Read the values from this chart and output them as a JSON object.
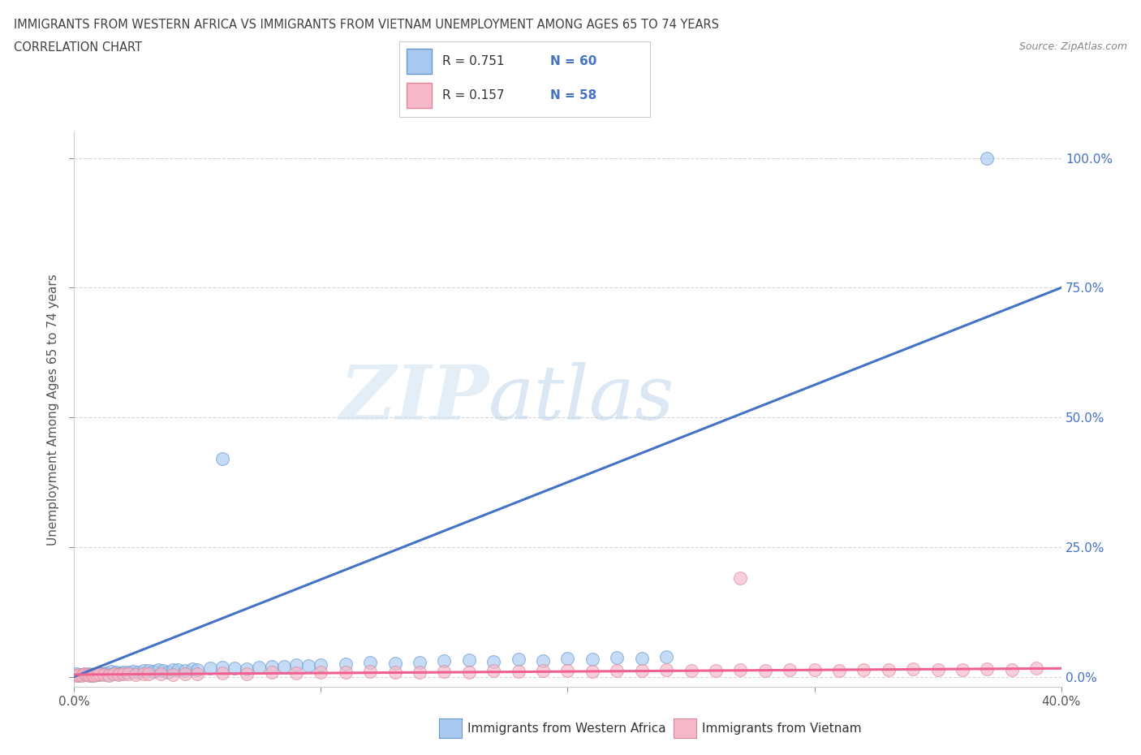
{
  "title_line1": "IMMIGRANTS FROM WESTERN AFRICA VS IMMIGRANTS FROM VIETNAM UNEMPLOYMENT AMONG AGES 65 TO 74 YEARS",
  "title_line2": "CORRELATION CHART",
  "source": "Source: ZipAtlas.com",
  "ylabel": "Unemployment Among Ages 65 to 74 years",
  "xlim": [
    0.0,
    0.4
  ],
  "ylim": [
    -0.02,
    1.05
  ],
  "xticks": [
    0.0,
    0.1,
    0.2,
    0.3,
    0.4
  ],
  "xtick_labels": [
    "0.0%",
    "",
    "",
    "",
    "40.0%"
  ],
  "ytick_labels": [
    "0.0%",
    "25.0%",
    "50.0%",
    "75.0%",
    "100.0%"
  ],
  "yticks": [
    0.0,
    0.25,
    0.5,
    0.75,
    1.0
  ],
  "watermark_zip": "ZIP",
  "watermark_atlas": "atlas",
  "legend_r1": "R = 0.751",
  "legend_n1": "N = 60",
  "legend_r2": "R = 0.157",
  "legend_n2": "N = 58",
  "color_wa_fill": "#a8c8f0",
  "color_wa_edge": "#6699cc",
  "color_vn_fill": "#f5b8c8",
  "color_vn_edge": "#dd8899",
  "trendline_color_wa": "#4472c4",
  "trendline_color_vn": "#f06090",
  "background_color": "#ffffff",
  "grid_color": "#cccccc",
  "title_color": "#404040",
  "wa_x": [
    0.001,
    0.002,
    0.003,
    0.004,
    0.005,
    0.006,
    0.007,
    0.008,
    0.009,
    0.01,
    0.011,
    0.012,
    0.013,
    0.014,
    0.015,
    0.016,
    0.017,
    0.018,
    0.019,
    0.02,
    0.022,
    0.024,
    0.026,
    0.028,
    0.03,
    0.032,
    0.034,
    0.036,
    0.038,
    0.04,
    0.042,
    0.045,
    0.048,
    0.05,
    0.055,
    0.06,
    0.065,
    0.07,
    0.075,
    0.08,
    0.085,
    0.09,
    0.095,
    0.1,
    0.11,
    0.12,
    0.13,
    0.14,
    0.15,
    0.16,
    0.17,
    0.18,
    0.19,
    0.2,
    0.21,
    0.22,
    0.23,
    0.24,
    0.06,
    0.37
  ],
  "wa_y": [
    0.005,
    0.003,
    0.004,
    0.006,
    0.004,
    0.005,
    0.003,
    0.006,
    0.005,
    0.004,
    0.006,
    0.005,
    0.007,
    0.004,
    0.01,
    0.006,
    0.008,
    0.005,
    0.007,
    0.009,
    0.008,
    0.01,
    0.009,
    0.011,
    0.012,
    0.01,
    0.013,
    0.011,
    0.009,
    0.014,
    0.013,
    0.012,
    0.015,
    0.014,
    0.016,
    0.018,
    0.017,
    0.015,
    0.018,
    0.02,
    0.019,
    0.022,
    0.021,
    0.023,
    0.025,
    0.027,
    0.026,
    0.028,
    0.03,
    0.032,
    0.029,
    0.033,
    0.031,
    0.035,
    0.033,
    0.037,
    0.036,
    0.038,
    0.42,
    1.0
  ],
  "vn_x": [
    0.001,
    0.002,
    0.003,
    0.004,
    0.005,
    0.006,
    0.007,
    0.008,
    0.009,
    0.01,
    0.012,
    0.014,
    0.016,
    0.018,
    0.02,
    0.022,
    0.025,
    0.028,
    0.03,
    0.035,
    0.04,
    0.045,
    0.05,
    0.06,
    0.07,
    0.08,
    0.09,
    0.1,
    0.11,
    0.12,
    0.13,
    0.14,
    0.15,
    0.16,
    0.17,
    0.18,
    0.19,
    0.2,
    0.21,
    0.22,
    0.23,
    0.24,
    0.25,
    0.26,
    0.27,
    0.28,
    0.29,
    0.3,
    0.31,
    0.32,
    0.33,
    0.34,
    0.35,
    0.36,
    0.37,
    0.38,
    0.39,
    0.27
  ],
  "vn_y": [
    0.003,
    0.004,
    0.003,
    0.005,
    0.004,
    0.003,
    0.004,
    0.003,
    0.004,
    0.005,
    0.004,
    0.003,
    0.005,
    0.004,
    0.005,
    0.006,
    0.004,
    0.005,
    0.006,
    0.005,
    0.004,
    0.006,
    0.005,
    0.007,
    0.006,
    0.008,
    0.007,
    0.009,
    0.008,
    0.01,
    0.008,
    0.009,
    0.01,
    0.009,
    0.011,
    0.01,
    0.012,
    0.011,
    0.01,
    0.012,
    0.011,
    0.013,
    0.012,
    0.011,
    0.013,
    0.012,
    0.014,
    0.013,
    0.012,
    0.014,
    0.013,
    0.015,
    0.014,
    0.013,
    0.015,
    0.014,
    0.016,
    0.19
  ],
  "wa_trend_x": [
    0.0,
    0.4
  ],
  "wa_trend_y": [
    0.0,
    0.75
  ],
  "vn_trend_x": [
    0.0,
    0.4
  ],
  "vn_trend_y": [
    0.004,
    0.016
  ]
}
